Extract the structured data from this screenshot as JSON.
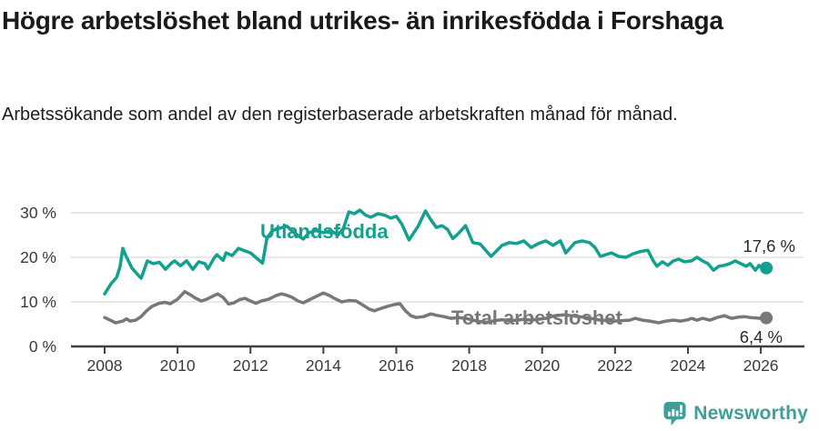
{
  "header": {
    "title": "Högre arbetslöshet bland utrikes- än inrikesfödda i Forshaga",
    "subtitle": "Arbetssökande som andel av den registerbaserade arbetskraften månad för månad."
  },
  "chart_data": {
    "type": "line",
    "title": "Högre arbetslöshet bland utrikes- än inrikesfödda i Forshaga",
    "subtitle": "Arbetssökande som andel av den registerbaserade arbetskraften månad för månad.",
    "xlabel": "",
    "ylabel": "",
    "ylim": [
      0,
      30
    ],
    "y_ticks": [
      0,
      10,
      20,
      30
    ],
    "y_tick_suffix": " %",
    "x_ticks": [
      2008,
      2010,
      2012,
      2014,
      2016,
      2018,
      2020,
      2022,
      2024,
      2026
    ],
    "grid": "horizontal",
    "legend_position": "inline-labels",
    "series": [
      {
        "name": "Utlandsfödda",
        "color": "#14a08f",
        "end_label": "17,6 %",
        "end_value": 17.6,
        "x": [
          2008.0,
          2008.17,
          2008.33,
          2008.42,
          2008.5,
          2008.58,
          2008.75,
          2008.92,
          2009.0,
          2009.17,
          2009.33,
          2009.5,
          2009.67,
          2009.83,
          2009.92,
          2010.08,
          2010.25,
          2010.42,
          2010.58,
          2010.75,
          2010.83,
          2011.0,
          2011.08,
          2011.25,
          2011.33,
          2011.5,
          2011.67,
          2011.83,
          2012.0,
          2012.17,
          2012.33,
          2012.45,
          2012.6,
          2012.8,
          2013.0,
          2013.2,
          2013.45,
          2013.6,
          2013.8,
          2014.0,
          2014.2,
          2014.4,
          2014.55,
          2014.7,
          2014.85,
          2015.0,
          2015.15,
          2015.3,
          2015.5,
          2015.7,
          2015.85,
          2016.0,
          2016.15,
          2016.35,
          2016.6,
          2016.8,
          2016.95,
          2017.1,
          2017.25,
          2017.4,
          2017.55,
          2017.7,
          2017.9,
          2018.1,
          2018.3,
          2018.6,
          2018.9,
          2019.1,
          2019.3,
          2019.5,
          2019.7,
          2019.9,
          2020.1,
          2020.3,
          2020.5,
          2020.65,
          2020.9,
          2021.1,
          2021.3,
          2021.45,
          2021.6,
          2021.75,
          2021.9,
          2022.1,
          2022.3,
          2022.5,
          2022.7,
          2022.9,
          2023.05,
          2023.15,
          2023.3,
          2023.45,
          2023.6,
          2023.75,
          2023.9,
          2024.1,
          2024.25,
          2024.4,
          2024.55,
          2024.7,
          2024.85,
          2025.0,
          2025.15,
          2025.3,
          2025.45,
          2025.6,
          2025.7,
          2025.85,
          2025.95,
          2026.05,
          2026.15
        ],
        "values": [
          11.8,
          14.0,
          15.5,
          17.8,
          22.0,
          20.4,
          17.6,
          16.0,
          15.3,
          19.2,
          18.6,
          18.9,
          17.3,
          18.7,
          19.2,
          18.1,
          19.2,
          17.3,
          19.0,
          18.6,
          17.4,
          19.8,
          20.6,
          19.3,
          21.0,
          20.4,
          22.0,
          21.5,
          21.0,
          19.8,
          18.7,
          24.3,
          26.0,
          26.5,
          27.0,
          25.5,
          24.1,
          25.5,
          26.0,
          25.5,
          26.0,
          25.0,
          26.5,
          30.2,
          29.8,
          30.6,
          29.5,
          29.0,
          29.8,
          29.4,
          28.8,
          29.2,
          27.5,
          23.9,
          27.0,
          30.4,
          28.4,
          26.7,
          27.1,
          26.3,
          24.2,
          25.3,
          27.1,
          23.3,
          23.0,
          20.2,
          22.7,
          23.3,
          23.1,
          23.7,
          22.2,
          23.1,
          23.7,
          22.7,
          23.7,
          21.0,
          23.3,
          23.7,
          23.3,
          22.2,
          20.2,
          20.6,
          21.0,
          20.2,
          20.0,
          20.8,
          21.3,
          21.6,
          19.2,
          18.0,
          19.0,
          18.2,
          19.2,
          19.6,
          19.0,
          19.2,
          20.0,
          19.2,
          18.6,
          17.1,
          18.0,
          18.2,
          18.6,
          19.2,
          18.6,
          18.0,
          18.6,
          17.1,
          18.2,
          17.2,
          17.6
        ]
      },
      {
        "name": "Total arbetslöshet",
        "color": "#77777c",
        "end_label": "6,4 %",
        "end_value": 6.4,
        "x": [
          2008.0,
          2008.15,
          2008.3,
          2008.5,
          2008.6,
          2008.7,
          2008.85,
          2009.0,
          2009.15,
          2009.3,
          2009.5,
          2009.65,
          2009.8,
          2010.0,
          2010.2,
          2010.35,
          2010.5,
          2010.65,
          2010.8,
          2011.0,
          2011.1,
          2011.25,
          2011.4,
          2011.55,
          2011.7,
          2011.85,
          2012.0,
          2012.15,
          2012.3,
          2012.5,
          2012.7,
          2012.85,
          2013.0,
          2013.15,
          2013.3,
          2013.45,
          2013.6,
          2013.8,
          2014.0,
          2014.15,
          2014.3,
          2014.5,
          2014.7,
          2014.9,
          2015.1,
          2015.25,
          2015.4,
          2015.6,
          2015.8,
          2015.95,
          2016.1,
          2016.25,
          2016.4,
          2016.55,
          2016.75,
          2016.95,
          2017.1,
          2017.3,
          2017.5,
          2017.7,
          2017.9,
          2018.1,
          2018.3,
          2018.5,
          2018.7,
          2018.9,
          2019.1,
          2019.3,
          2019.5,
          2019.7,
          2019.9,
          2020.1,
          2020.35,
          2020.6,
          2020.8,
          2021.0,
          2021.2,
          2021.4,
          2021.6,
          2021.8,
          2022.0,
          2022.2,
          2022.4,
          2022.55,
          2022.75,
          2022.95,
          2023.2,
          2023.4,
          2023.6,
          2023.8,
          2024.0,
          2024.1,
          2024.25,
          2024.4,
          2024.6,
          2024.8,
          2025.0,
          2025.2,
          2025.4,
          2025.55,
          2025.7,
          2025.85,
          2026.0,
          2026.15
        ],
        "values": [
          6.5,
          5.9,
          5.3,
          5.7,
          6.2,
          5.7,
          5.9,
          6.7,
          8.0,
          9.0,
          9.7,
          9.9,
          9.6,
          10.6,
          12.3,
          11.6,
          10.8,
          10.2,
          10.6,
          11.4,
          11.8,
          11.0,
          9.5,
          9.8,
          10.5,
          10.8,
          10.2,
          9.7,
          10.2,
          10.6,
          11.4,
          11.8,
          11.5,
          11.0,
          10.2,
          9.8,
          10.4,
          11.2,
          12.0,
          11.5,
          10.8,
          10.0,
          10.3,
          10.2,
          9.2,
          8.4,
          8.0,
          8.6,
          9.1,
          9.4,
          9.6,
          8.0,
          6.9,
          6.5,
          6.7,
          7.3,
          7.0,
          6.7,
          6.3,
          6.5,
          6.3,
          5.9,
          5.6,
          5.4,
          5.8,
          6.0,
          5.8,
          5.9,
          6.1,
          5.9,
          6.1,
          6.3,
          6.9,
          7.1,
          6.9,
          6.7,
          6.5,
          6.2,
          5.9,
          5.8,
          5.7,
          5.8,
          5.9,
          6.3,
          5.9,
          5.7,
          5.3,
          5.7,
          5.9,
          5.7,
          6.0,
          6.3,
          5.9,
          6.3,
          5.9,
          6.5,
          6.9,
          6.3,
          6.6,
          6.7,
          6.5,
          6.4,
          6.3,
          6.4
        ]
      }
    ]
  },
  "logo": {
    "text": "Newsworthy",
    "icon": "newsworthy-speech-bubble-bars-icon",
    "color": "#3f9e97"
  },
  "colors": {
    "background": "#ffffff",
    "title_text": "#1a1a1a",
    "axis_text": "#3a3a3a",
    "axis_line": "#3f3f3f",
    "gridline": "#d9d9d9",
    "series_teal": "#14a08f",
    "series_gray": "#77777c",
    "end_label_text": "#2b2b2b"
  }
}
